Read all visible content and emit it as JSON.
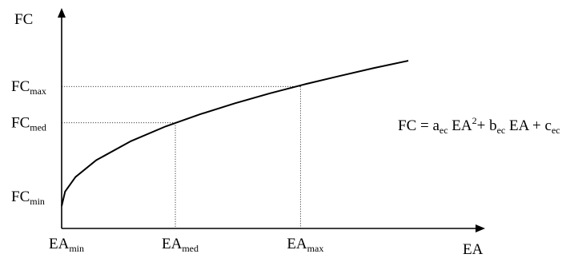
{
  "chart_data": {
    "type": "line",
    "title": "",
    "xlabel": "EA",
    "ylabel": "FC",
    "grid": false,
    "legend": "none",
    "xlim": [
      0,
      1
    ],
    "ylim": [
      0,
      1
    ],
    "series": [
      {
        "x": [
          0.0,
          0.01,
          0.04,
          0.1,
          0.2,
          0.3,
          0.4,
          0.5,
          0.6,
          0.7,
          0.8,
          0.9,
          1.0
        ],
        "values": [
          0.0,
          0.1,
          0.2,
          0.316,
          0.447,
          0.548,
          0.632,
          0.707,
          0.775,
          0.837,
          0.894,
          0.949,
          1.0
        ]
      }
    ],
    "x_ticks": [
      {
        "x": 0.0,
        "base": "EA",
        "sub": "min"
      },
      {
        "x": 0.328,
        "base": "EA",
        "sub": "med"
      },
      {
        "x": 0.689,
        "base": "EA",
        "sub": "max"
      }
    ],
    "y_ticks": [
      {
        "y": 0.0,
        "base": "FC",
        "sub": "min"
      },
      {
        "y": 0.573,
        "base": "FC",
        "sub": "med"
      },
      {
        "y": 0.823,
        "base": "FC",
        "sub": "max"
      }
    ],
    "guides": [
      {
        "x": 0.328,
        "y": 0.573
      },
      {
        "x": 0.689,
        "y": 0.823
      }
    ],
    "annotation": {
      "parts": [
        {
          "t": "FC = a",
          "k": "n"
        },
        {
          "t": "ec",
          "k": "sub"
        },
        {
          "t": " EA",
          "k": "n"
        },
        {
          "t": "2",
          "k": "sup"
        },
        {
          "t": "+ b",
          "k": "n"
        },
        {
          "t": "ec",
          "k": "sub"
        },
        {
          "t": " EA + c",
          "k": "n"
        },
        {
          "t": "ec",
          "k": "sub"
        }
      ]
    }
  }
}
